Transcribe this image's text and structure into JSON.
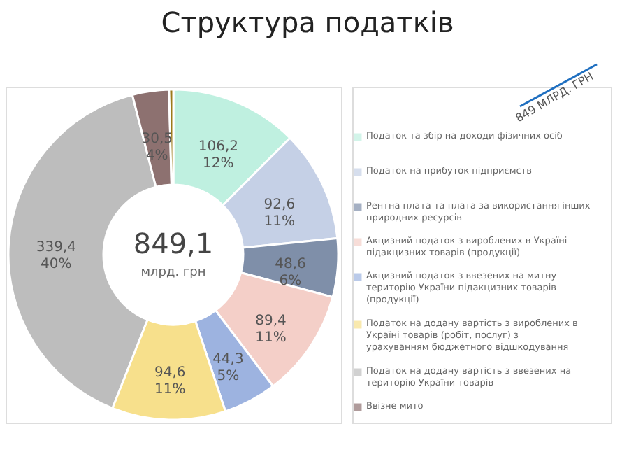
{
  "chart_data": {
    "type": "donut",
    "title": "Структура податків",
    "categories": [
      "Податок та збір на доходи фізичних осіб",
      "Податок на прибуток підприємств",
      "Рентна плата та плата за використання інших природних ресурсів",
      "Акцизний податок з вироблених в Україні підакцизних товарів (продукції)",
      "Акцизний податок з ввезених на митну територію України підакцизних товарів (продукції)",
      "Податок на додану вартість з вироблених в Україні товарів (робіт, послуг) з урахуванням бюджетного відшкодування",
      "Податок на додану вартість з ввезених на територію України товарів",
      "Ввізне мито",
      null
    ],
    "values": [
      106.2,
      92.6,
      48.6,
      89.4,
      44.3,
      94.6,
      339.4,
      30.5,
      3.5
    ],
    "colors": [
      "#bff0e0",
      "#c5d0e6",
      "#7f8fa9",
      "#f4cfc8",
      "#9db3e0",
      "#f7e08c",
      "#bdbdbd",
      "#8d7170",
      "#9c7a1a"
    ],
    "value_labels": [
      "106,2\n12%",
      "92,6\n11%",
      "48,6\n6%",
      "89,4\n11%",
      "44,3\n5%",
      "94,6\n11%",
      "339,4\n40%",
      "30,5\n4%",
      null
    ],
    "annotations": [
      "849 МЛРД. ГРН",
      "849,1",
      "млрд. грн"
    ],
    "legend": "right"
  }
}
